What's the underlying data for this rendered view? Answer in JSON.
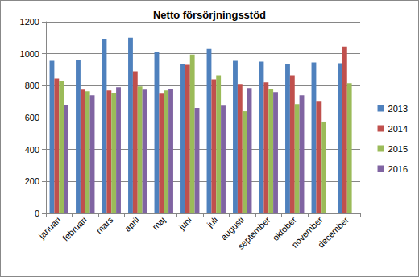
{
  "chart_data": {
    "type": "bar",
    "title": "Netto försörjningsstöd",
    "categories": [
      "januari",
      "februari",
      "mars",
      "april",
      "maj",
      "juni",
      "juli",
      "augusti",
      "september",
      "oktober",
      "november",
      "december"
    ],
    "series": [
      {
        "name": "2013",
        "color": "#4F81BD",
        "values": [
          955,
          960,
          1090,
          1100,
          1010,
          935,
          1030,
          955,
          950,
          935,
          945,
          940
        ]
      },
      {
        "name": "2014",
        "color": "#C0504D",
        "values": [
          845,
          775,
          770,
          890,
          750,
          930,
          840,
          810,
          820,
          865,
          700,
          1045
        ]
      },
      {
        "name": "2015",
        "color": "#9BBB59",
        "values": [
          830,
          765,
          755,
          795,
          770,
          995,
          865,
          640,
          780,
          685,
          575,
          815
        ]
      },
      {
        "name": "2016",
        "color": "#8064A2",
        "values": [
          680,
          740,
          790,
          775,
          780,
          660,
          675,
          785,
          760,
          740,
          null,
          null
        ]
      }
    ],
    "ylim": [
      0,
      1200
    ],
    "yticks": [
      0,
      200,
      400,
      600,
      800,
      1000,
      1200
    ],
    "grid": true,
    "legend": "right"
  }
}
